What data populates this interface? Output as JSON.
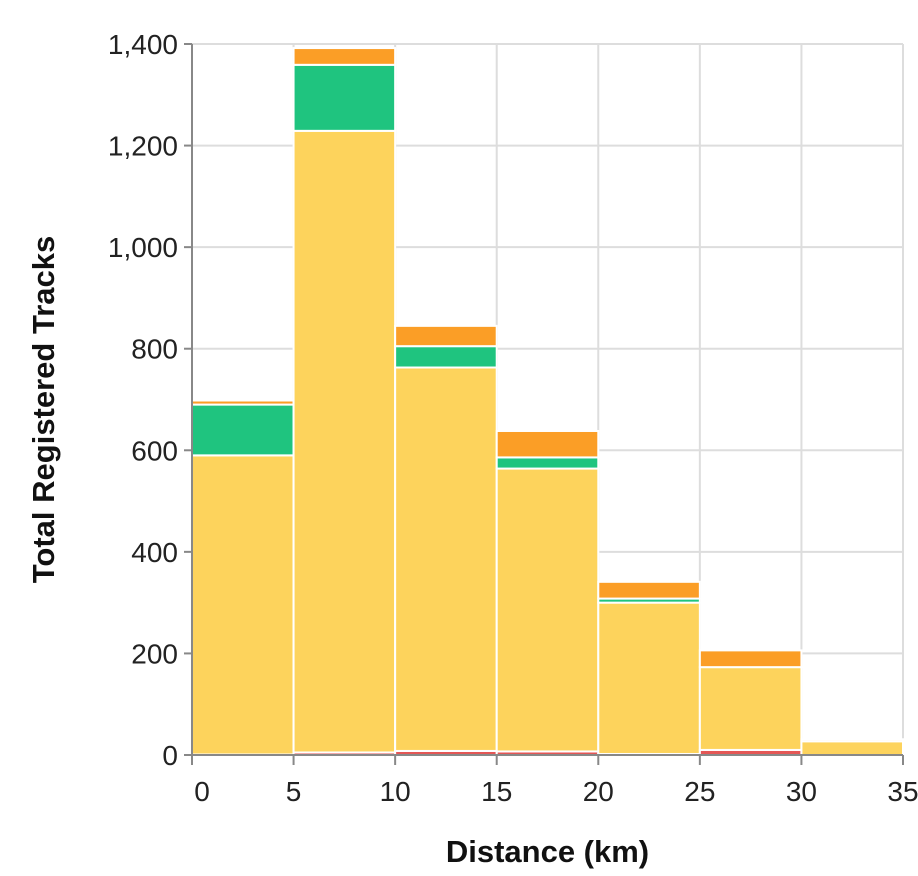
{
  "chart_data": {
    "type": "bar",
    "stacked": true,
    "histogram": true,
    "title": "",
    "xlabel": "Distance (km)",
    "ylabel": "Total Registered Tracks",
    "xlim": [
      0,
      35
    ],
    "ylim": [
      0,
      1400
    ],
    "x_ticks": [
      "0",
      "5",
      "10",
      "15",
      "20",
      "25",
      "30",
      "35"
    ],
    "y_ticks": [
      "0",
      "200",
      "400",
      "600",
      "800",
      "1,000",
      "1,200",
      "1,400"
    ],
    "grid": true,
    "legend": "none",
    "bins": [
      [
        0,
        5
      ],
      [
        5,
        10
      ],
      [
        10,
        15
      ],
      [
        15,
        20
      ],
      [
        20,
        25
      ],
      [
        25,
        30
      ],
      [
        30,
        35
      ]
    ],
    "series": [
      {
        "color": "#e45756",
        "values": [
          1,
          5,
          8,
          7,
          2,
          10,
          0
        ]
      },
      {
        "color": "#fdd35c",
        "values": [
          589,
          1224,
          755,
          557,
          298,
          163,
          27
        ]
      },
      {
        "color": "#1fc47f",
        "values": [
          100,
          130,
          42,
          22,
          8,
          0,
          0
        ]
      },
      {
        "color": "#fb9e26",
        "values": [
          8,
          33,
          40,
          52,
          33,
          33,
          4
        ]
      }
    ]
  }
}
